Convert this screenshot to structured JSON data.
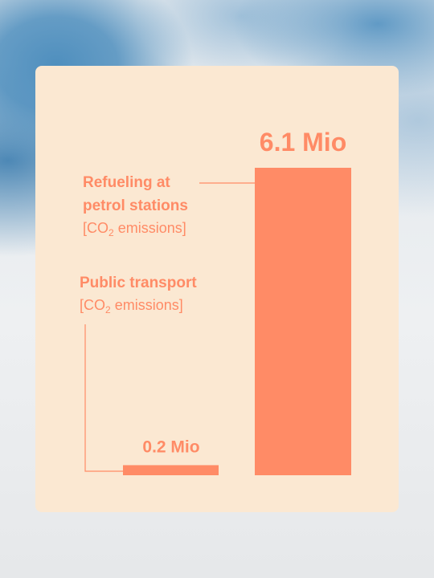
{
  "chart_data": {
    "type": "bar",
    "categories": [
      {
        "name": "Public transport",
        "detail_prefix": "[CO",
        "detail_sub": "2",
        "detail_suffix": " emissions]"
      },
      {
        "name": "Refueling at petrol stations",
        "name_line1": "Refueling at",
        "name_line2": "petrol stations",
        "detail_prefix": "[CO",
        "detail_sub": "2",
        "detail_suffix": " emissions]"
      }
    ],
    "values": [
      0.2,
      6.1
    ],
    "value_labels": [
      "0.2 Mio",
      "6.1 Mio"
    ],
    "unit": "Mio",
    "ylim": [
      0,
      6.1
    ],
    "grid": false,
    "colors": {
      "bar": "#ff8b66",
      "card": "#fbe8d2",
      "text": "#ff8b66"
    }
  }
}
